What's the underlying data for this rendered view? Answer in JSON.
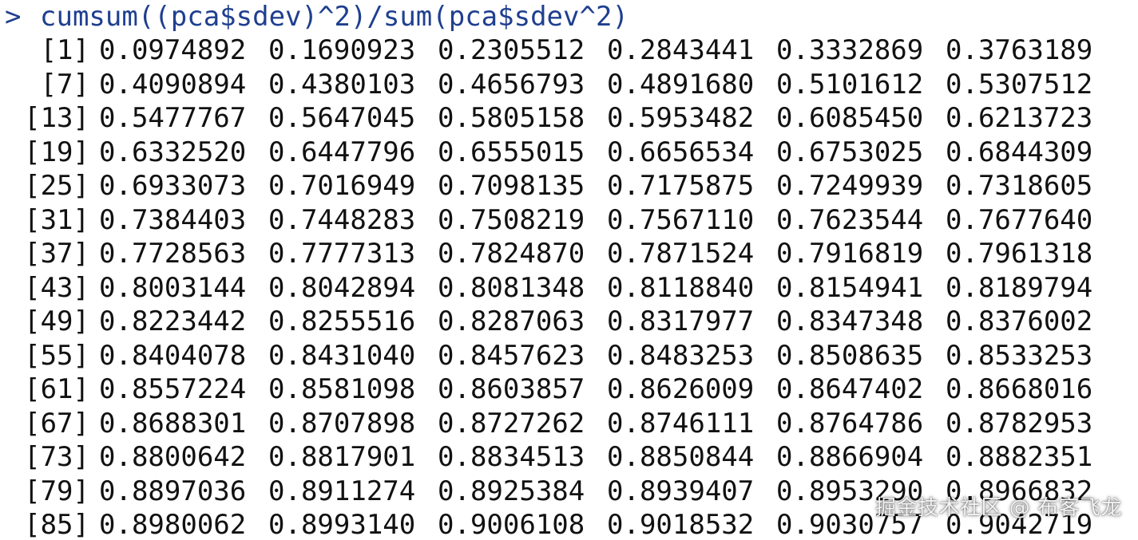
{
  "console": {
    "prompt": ">",
    "command": "cumsum((pca$sdev)^2)/sum(pca$sdev^2)",
    "colors": {
      "command": "#1f3f8f",
      "output": "#111111",
      "background": "#ffffff"
    },
    "rows": [
      {
        "index": "[1]",
        "values": [
          "0.0974892",
          "0.1690923",
          "0.2305512",
          "0.2843441",
          "0.3332869",
          "0.3763189"
        ]
      },
      {
        "index": "[7]",
        "values": [
          "0.4090894",
          "0.4380103",
          "0.4656793",
          "0.4891680",
          "0.5101612",
          "0.5307512"
        ]
      },
      {
        "index": "[13]",
        "values": [
          "0.5477767",
          "0.5647045",
          "0.5805158",
          "0.5953482",
          "0.6085450",
          "0.6213723"
        ]
      },
      {
        "index": "[19]",
        "values": [
          "0.6332520",
          "0.6447796",
          "0.6555015",
          "0.6656534",
          "0.6753025",
          "0.6844309"
        ]
      },
      {
        "index": "[25]",
        "values": [
          "0.6933073",
          "0.7016949",
          "0.7098135",
          "0.7175875",
          "0.7249939",
          "0.7318605"
        ]
      },
      {
        "index": "[31]",
        "values": [
          "0.7384403",
          "0.7448283",
          "0.7508219",
          "0.7567110",
          "0.7623544",
          "0.7677640"
        ]
      },
      {
        "index": "[37]",
        "values": [
          "0.7728563",
          "0.7777313",
          "0.7824870",
          "0.7871524",
          "0.7916819",
          "0.7961318"
        ]
      },
      {
        "index": "[43]",
        "values": [
          "0.8003144",
          "0.8042894",
          "0.8081348",
          "0.8118840",
          "0.8154941",
          "0.8189794"
        ]
      },
      {
        "index": "[49]",
        "values": [
          "0.8223442",
          "0.8255516",
          "0.8287063",
          "0.8317977",
          "0.8347348",
          "0.8376002"
        ]
      },
      {
        "index": "[55]",
        "values": [
          "0.8404078",
          "0.8431040",
          "0.8457623",
          "0.8483253",
          "0.8508635",
          "0.8533253"
        ]
      },
      {
        "index": "[61]",
        "values": [
          "0.8557224",
          "0.8581098",
          "0.8603857",
          "0.8626009",
          "0.8647402",
          "0.8668016"
        ]
      },
      {
        "index": "[67]",
        "values": [
          "0.8688301",
          "0.8707898",
          "0.8727262",
          "0.8746111",
          "0.8764786",
          "0.8782953"
        ]
      },
      {
        "index": "[73]",
        "values": [
          "0.8800642",
          "0.8817901",
          "0.8834513",
          "0.8850844",
          "0.8866904",
          "0.8882351"
        ]
      },
      {
        "index": "[79]",
        "values": [
          "0.8897036",
          "0.8911274",
          "0.8925384",
          "0.8939407",
          "0.8953290",
          "0.8966832"
        ]
      },
      {
        "index": "[85]",
        "values": [
          "0.8980062",
          "0.8993140",
          "0.9006108",
          "0.9018532",
          "0.9030757",
          "0.9042719"
        ]
      }
    ]
  },
  "watermark": {
    "text": "掘金技术社区 @ 布客飞龙"
  }
}
